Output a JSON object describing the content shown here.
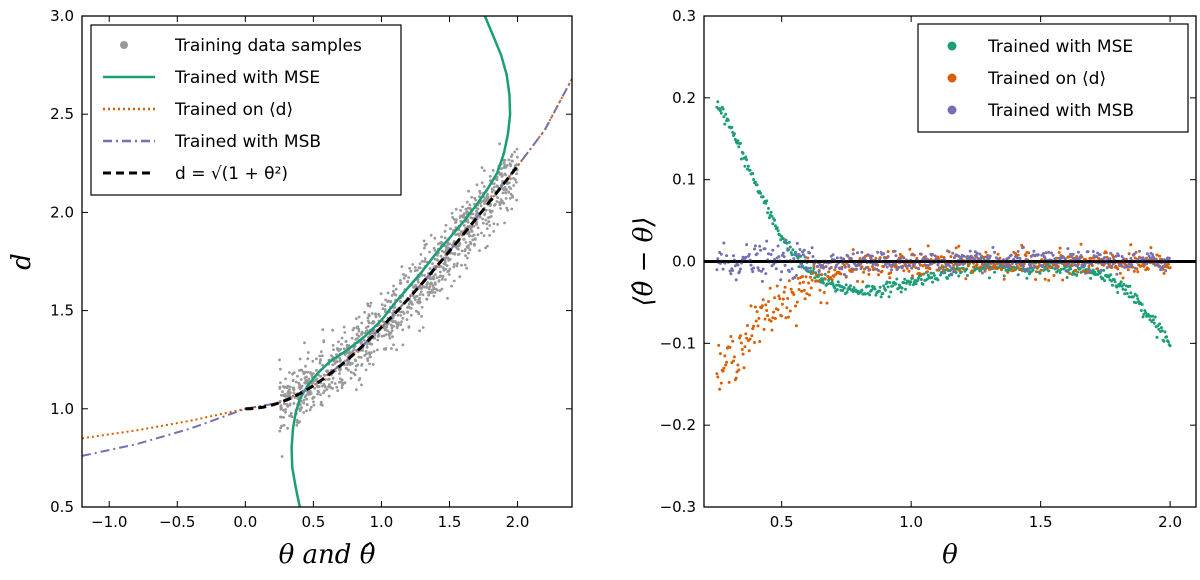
{
  "chart_data": [
    {
      "type": "scatter",
      "xlabel": "θ and θ̂",
      "ylabel": "d",
      "xlim": [
        -1.2,
        2.4
      ],
      "ylim": [
        0.5,
        3.0
      ],
      "xticks": [
        -1.0,
        -0.5,
        0.0,
        0.5,
        1.0,
        1.5,
        2.0
      ],
      "xtick_labels": [
        "−1.0",
        "−0.5",
        "0.0",
        "0.5",
        "1.0",
        "1.5",
        "2.0"
      ],
      "yticks": [
        0.5,
        1.0,
        1.5,
        2.0,
        2.5,
        3.0
      ],
      "ytick_labels": [
        "0.5",
        "1.0",
        "1.5",
        "2.0",
        "2.5",
        "3.0"
      ],
      "legend_position": "top-left",
      "legend": [
        {
          "label": "Training data samples",
          "color": "#999999",
          "style": "marker"
        },
        {
          "label": "Trained with MSE",
          "color": "#1b9e77",
          "style": "solid"
        },
        {
          "label": "Trained on ⟨d⟩",
          "color": "#d95f02",
          "style": "dotted"
        },
        {
          "label": "Trained with MSB",
          "color": "#7570b3",
          "style": "dashdot"
        },
        {
          "label": "d = √(1 + θ²)",
          "color": "#000000",
          "style": "dashed"
        }
      ],
      "samples": {
        "theta_range": [
          0.25,
          2.0
        ],
        "count": 1100,
        "model": "d = sqrt(1+θ²) + noise",
        "noise_sd": 0.08
      },
      "series": [
        {
          "name": "Trained with MSE",
          "color": "#1b9e77",
          "x": [
            0.4,
            0.37,
            0.345,
            0.34,
            0.35,
            0.37,
            0.4,
            0.46,
            0.53,
            0.62,
            0.75,
            0.88,
            1.0,
            1.1,
            1.2,
            1.3,
            1.4,
            1.5,
            1.6,
            1.7,
            1.78,
            1.85,
            1.9,
            1.93,
            1.945,
            1.94,
            1.92,
            1.88,
            1.82,
            1.76
          ],
          "y": [
            0.5,
            0.6,
            0.7,
            0.8,
            0.9,
            0.98,
            1.05,
            1.12,
            1.18,
            1.24,
            1.3,
            1.37,
            1.45,
            1.54,
            1.62,
            1.7,
            1.79,
            1.87,
            1.95,
            2.04,
            2.12,
            2.2,
            2.3,
            2.4,
            2.5,
            2.6,
            2.7,
            2.8,
            2.9,
            3.0
          ]
        },
        {
          "name": "Trained on ⟨d⟩",
          "color": "#d95f02",
          "x": [
            -1.2,
            -1.0,
            -0.8,
            -0.6,
            -0.4,
            -0.2,
            0.0,
            0.25,
            0.5,
            0.75,
            1.0,
            1.25,
            1.5,
            1.75,
            2.0,
            2.2,
            2.4
          ],
          "y": [
            0.85,
            0.87,
            0.89,
            0.915,
            0.94,
            0.97,
            1.0,
            1.031,
            1.118,
            1.25,
            1.414,
            1.601,
            1.803,
            2.016,
            2.236,
            2.42,
            2.68
          ]
        },
        {
          "name": "Trained with MSB",
          "color": "#7570b3",
          "x": [
            -1.2,
            -1.0,
            -0.8,
            -0.6,
            -0.4,
            -0.2,
            0.0,
            0.25,
            0.5,
            0.75,
            1.0,
            1.25,
            1.5,
            1.75,
            2.0,
            2.2,
            2.4
          ],
          "y": [
            0.76,
            0.79,
            0.82,
            0.86,
            0.9,
            0.95,
            1.0,
            1.031,
            1.118,
            1.25,
            1.414,
            1.601,
            1.803,
            2.016,
            2.236,
            2.42,
            2.68
          ]
        },
        {
          "name": "d = √(1 + θ²)",
          "color": "#000000",
          "function": "sqrt(1+θ²)",
          "x_range": [
            0.0,
            2.0
          ]
        }
      ]
    },
    {
      "type": "scatter",
      "xlabel": "θ",
      "ylabel": "⟨θ̂ − θ⟩",
      "xlim": [
        0.2,
        2.1
      ],
      "ylim": [
        -0.3,
        0.3
      ],
      "xticks": [
        0.5,
        1.0,
        1.5,
        2.0
      ],
      "xtick_labels": [
        "0.5",
        "1.0",
        "1.5",
        "2.0"
      ],
      "yticks": [
        -0.3,
        -0.2,
        -0.1,
        0.0,
        0.1,
        0.2,
        0.3
      ],
      "ytick_labels": [
        "−0.3",
        "−0.2",
        "−0.1",
        "0.0",
        "0.1",
        "0.2",
        "0.3"
      ],
      "reference_line_y": 0.0,
      "legend_position": "top-right",
      "legend": [
        {
          "label": "Trained with MSE",
          "color": "#1b9e77"
        },
        {
          "label": "Trained on ⟨d⟩",
          "color": "#d95f02"
        },
        {
          "label": "Trained with MSB",
          "color": "#7570b3"
        }
      ],
      "series": [
        {
          "name": "Trained with MSE",
          "color": "#1b9e77",
          "x": [
            0.25,
            0.3,
            0.35,
            0.4,
            0.45,
            0.5,
            0.55,
            0.6,
            0.65,
            0.7,
            0.8,
            0.9,
            1.0,
            1.1,
            1.2,
            1.3,
            1.4,
            1.5,
            1.6,
            1.7,
            1.75,
            1.8,
            1.85,
            1.9,
            1.95,
            2.0
          ],
          "y": [
            0.195,
            0.165,
            0.13,
            0.095,
            0.06,
            0.03,
            0.008,
            -0.01,
            -0.022,
            -0.03,
            -0.036,
            -0.034,
            -0.025,
            -0.015,
            -0.01,
            -0.008,
            -0.008,
            -0.008,
            -0.009,
            -0.012,
            -0.017,
            -0.027,
            -0.04,
            -0.058,
            -0.078,
            -0.1
          ],
          "noise_sd": 0.004
        },
        {
          "name": "Trained on ⟨d⟩",
          "color": "#d95f02",
          "x": [
            0.25,
            0.3,
            0.35,
            0.4,
            0.45,
            0.5,
            0.55,
            0.6,
            0.65,
            0.7,
            0.8,
            0.9,
            1.0,
            1.2,
            1.4,
            1.6,
            1.8,
            2.0
          ],
          "y": [
            -0.145,
            -0.12,
            -0.1,
            -0.08,
            -0.063,
            -0.048,
            -0.036,
            -0.026,
            -0.018,
            -0.012,
            -0.006,
            -0.004,
            -0.003,
            -0.002,
            -0.002,
            -0.002,
            -0.003,
            -0.004
          ],
          "noise_sd": 0.008
        },
        {
          "name": "Trained with MSB",
          "color": "#7570b3",
          "x": [
            0.25,
            2.0
          ],
          "y": [
            0.0,
            0.0
          ],
          "noise_sd": 0.006
        }
      ]
    }
  ]
}
